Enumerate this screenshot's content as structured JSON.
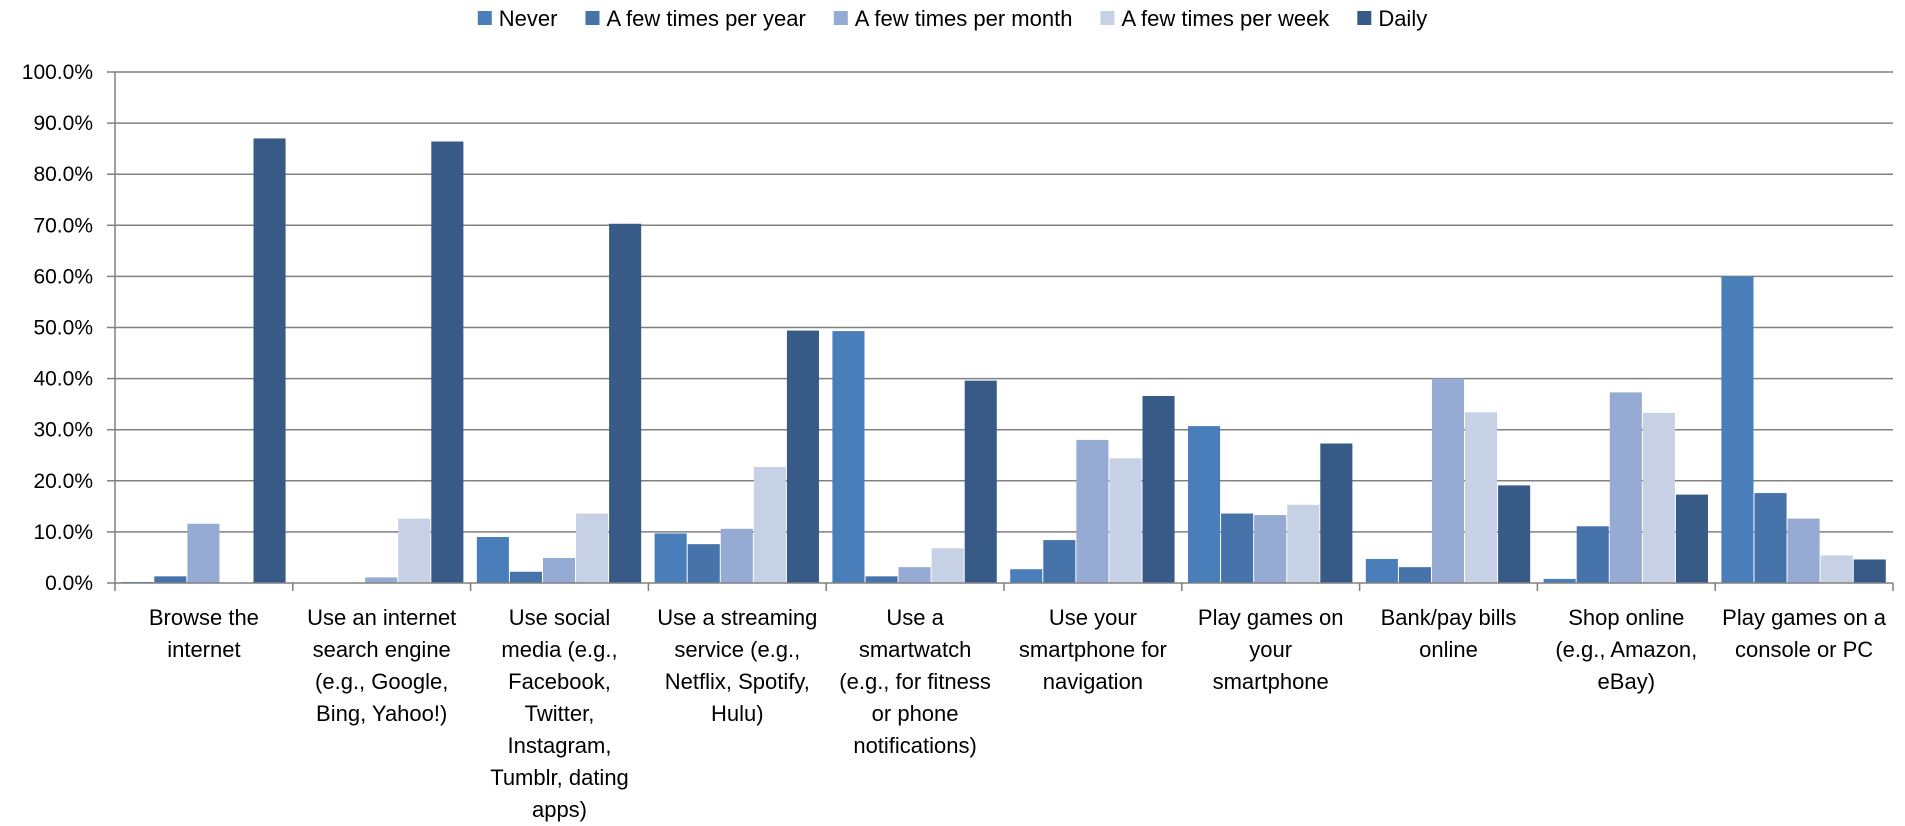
{
  "chart_data": {
    "type": "bar",
    "categories": [
      [
        "Browse the",
        "internet"
      ],
      [
        "Use an internet",
        "search engine",
        "(e.g., Google,",
        "Bing, Yahoo!)"
      ],
      [
        "Use social",
        "media (e.g.,",
        "Facebook,",
        "Twitter,",
        "Instagram,",
        "Tumblr, dating",
        "apps)"
      ],
      [
        "Use a streaming",
        "service (e.g.,",
        "Netflix, Spotify,",
        "Hulu)"
      ],
      [
        "Use a",
        "smartwatch",
        "(e.g., for fitness",
        "or phone",
        "notifications)"
      ],
      [
        "Use your",
        "smartphone for",
        "navigation"
      ],
      [
        "Play games on",
        "your",
        "smartphone"
      ],
      [
        "Bank/pay bills",
        "online"
      ],
      [
        "Shop online",
        "(e.g., Amazon,",
        "eBay)"
      ],
      [
        "Play games on a",
        "console or PC"
      ]
    ],
    "series": [
      {
        "name": "Never",
        "color": "#4a7ebb",
        "values": [
          0.2,
          0.0,
          9.0,
          9.7,
          49.3,
          2.7,
          30.7,
          4.7,
          0.8,
          60.0
        ]
      },
      {
        "name": "A few times per year",
        "color": "#4673aa",
        "values": [
          1.3,
          0.0,
          2.2,
          7.6,
          1.3,
          8.4,
          13.6,
          3.1,
          11.1,
          17.6
        ]
      },
      {
        "name": "A few times per month",
        "color": "#95abd3",
        "values": [
          11.6,
          1.1,
          4.9,
          10.6,
          3.1,
          28.0,
          13.3,
          40.0,
          37.3,
          12.6
        ]
      },
      {
        "name": "A few times per week",
        "color": "#c6d1e6",
        "values": [
          0.0,
          12.6,
          13.6,
          22.7,
          6.8,
          24.4,
          15.3,
          33.4,
          33.3,
          5.4
        ]
      },
      {
        "name": "Daily",
        "color": "#375a87",
        "values": [
          87.0,
          86.4,
          70.3,
          49.4,
          39.6,
          36.6,
          27.3,
          19.1,
          17.3,
          4.6
        ]
      }
    ],
    "y_ticks": [
      "0.0%",
      "10.0%",
      "20.0%",
      "30.0%",
      "40.0%",
      "50.0%",
      "60.0%",
      "70.0%",
      "80.0%",
      "90.0%",
      "100.0%"
    ],
    "ylim": [
      0,
      100
    ],
    "grid": true,
    "legend_position": "top"
  }
}
